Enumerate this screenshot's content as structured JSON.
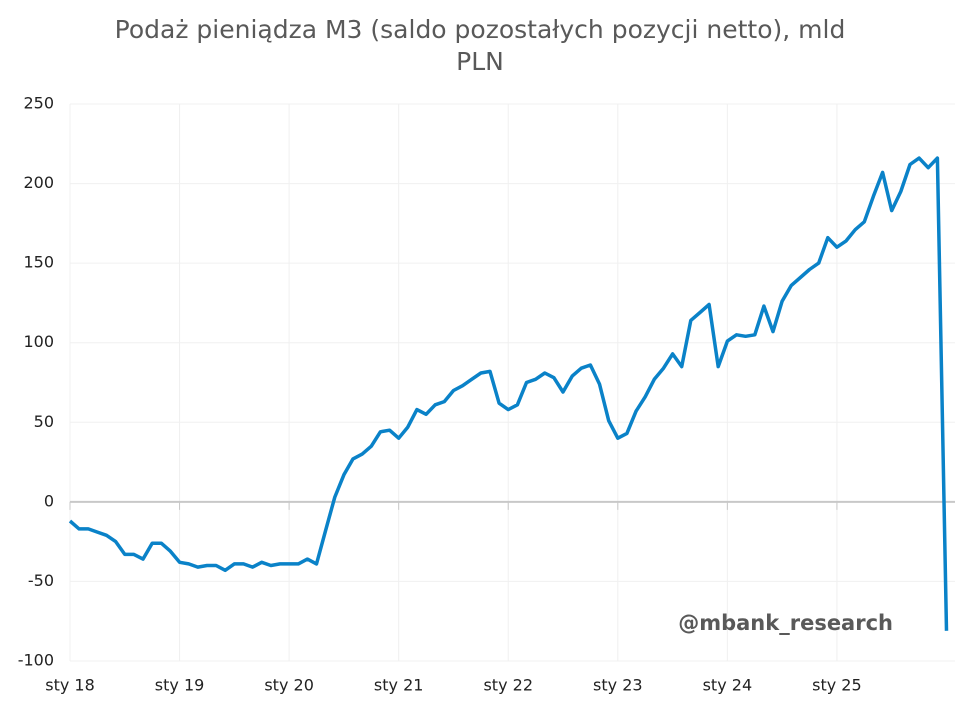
{
  "chart_data": {
    "type": "line",
    "title": "Podaż pieniądza M3 (saldo pozostałych pozycji netto), mld PLN",
    "annotation": "@mbank_research",
    "categories": [
      "sty 18",
      null,
      null,
      null,
      null,
      null,
      null,
      null,
      null,
      null,
      null,
      null,
      "sty 19",
      null,
      null,
      null,
      null,
      null,
      null,
      null,
      null,
      null,
      null,
      null,
      "sty 20",
      null,
      null,
      null,
      null,
      null,
      null,
      null,
      null,
      null,
      null,
      null,
      "sty 21",
      null,
      null,
      null,
      null,
      null,
      null,
      null,
      null,
      null,
      null,
      null,
      "sty 22",
      null,
      null,
      null,
      null,
      null,
      null,
      null,
      null,
      null,
      null,
      null,
      "sty 23",
      null,
      null,
      null,
      null,
      null,
      null,
      null,
      null,
      null,
      null,
      null,
      "sty 24",
      null,
      null,
      null,
      null,
      null,
      null,
      null,
      null,
      null,
      null,
      null,
      "sty 25",
      null,
      null,
      null,
      null,
      null,
      null,
      null,
      null,
      null,
      null,
      null,
      null
    ],
    "series": [
      {
        "name": "M3",
        "color": "#0a82c8",
        "values": [
          -12,
          -17,
          -17,
          -19,
          -21,
          -25,
          -33,
          -33,
          -36,
          -26,
          -26,
          -31,
          -38,
          -39,
          -41,
          -40,
          -40,
          -43,
          -39,
          -39,
          -41,
          -38,
          -40,
          -39,
          -39,
          -39,
          -36,
          -39,
          -18,
          3,
          17,
          27,
          30,
          35,
          44,
          45,
          40,
          47,
          58,
          55,
          61,
          63,
          70,
          73,
          77,
          81,
          82,
          62,
          58,
          61,
          75,
          77,
          81,
          78,
          69,
          79,
          84,
          86,
          74,
          51,
          40,
          43,
          57,
          66,
          77,
          84,
          93,
          85,
          114,
          119,
          124,
          85,
          101,
          105,
          104,
          105,
          123,
          107,
          126,
          136,
          141,
          146,
          150,
          166,
          160,
          164,
          171,
          176,
          192,
          207,
          183,
          195,
          212,
          216,
          210,
          216,
          -81
        ]
      }
    ],
    "ylim": [
      -100,
      250
    ],
    "yticks": [
      -100,
      -50,
      0,
      50,
      100,
      150,
      200,
      250
    ],
    "grid": true
  }
}
